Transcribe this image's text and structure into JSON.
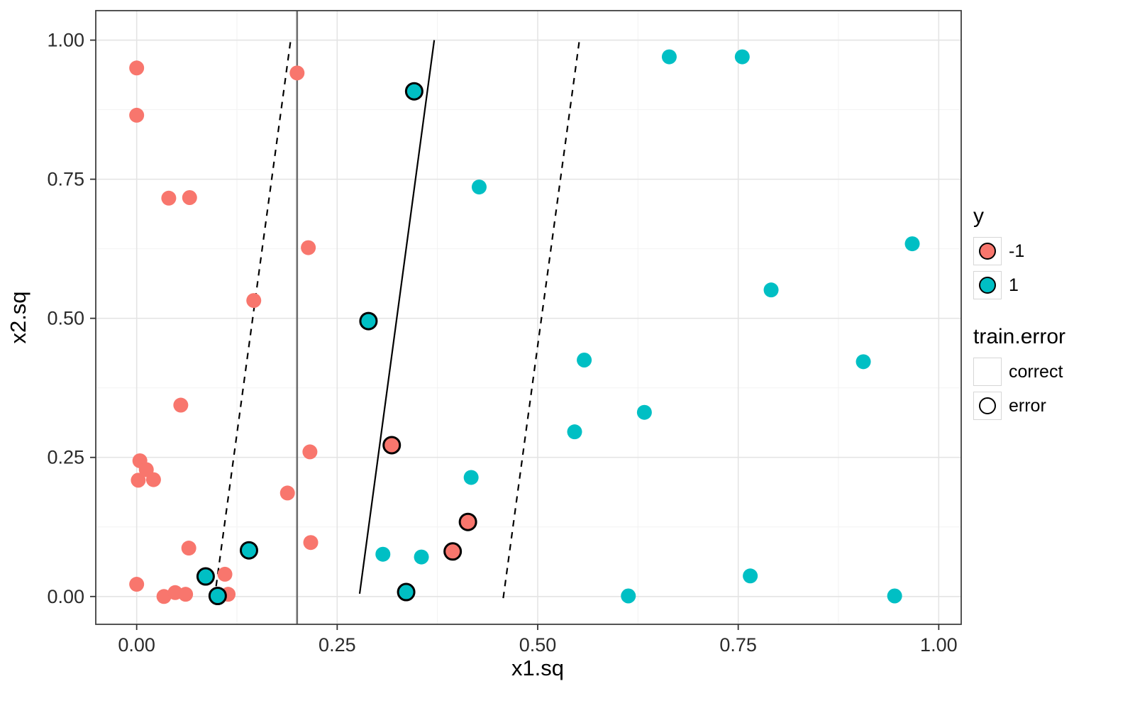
{
  "chart_data": {
    "type": "scatter",
    "title": "",
    "xlabel": "x1.sq",
    "ylabel": "x2.sq",
    "xlim": [
      -0.051,
      1.028
    ],
    "ylim": [
      -0.05,
      1.053
    ],
    "x_ticks": [
      0,
      0.25,
      0.5,
      0.75,
      1
    ],
    "y_ticks": [
      0,
      0.25,
      0.5,
      0.75,
      1
    ],
    "x_tick_labels": [
      "0.00",
      "0.25",
      "0.50",
      "0.75",
      "1.00"
    ],
    "y_tick_labels": [
      "0.00",
      "0.25",
      "0.50",
      "0.75",
      "1.00"
    ],
    "x_minor": [
      0.125,
      0.375,
      0.625,
      0.875
    ],
    "y_minor": [
      0.125,
      0.375,
      0.625,
      0.875
    ],
    "grid": true,
    "legend_position": "right",
    "point_note": "points are [x, y, train_error_flag] where 1 = error (black outline)",
    "series": [
      {
        "name": "-1",
        "color": "#F8766D",
        "points": [
          [
            0.0,
            0.95,
            0
          ],
          [
            0.0,
            0.865,
            0
          ],
          [
            0.04,
            0.716,
            0
          ],
          [
            0.066,
            0.717,
            0
          ],
          [
            0.2,
            0.941,
            0
          ],
          [
            0.214,
            0.627,
            0
          ],
          [
            0.146,
            0.532,
            0
          ],
          [
            0.055,
            0.344,
            0
          ],
          [
            0.216,
            0.26,
            0
          ],
          [
            0.004,
            0.244,
            0
          ],
          [
            0.012,
            0.228,
            0
          ],
          [
            0.002,
            0.209,
            0
          ],
          [
            0.021,
            0.21,
            0
          ],
          [
            0.188,
            0.186,
            0
          ],
          [
            0.065,
            0.087,
            0
          ],
          [
            0.217,
            0.097,
            0
          ],
          [
            0.0,
            0.022,
            0
          ],
          [
            0.034,
            0.0,
            0
          ],
          [
            0.048,
            0.007,
            0
          ],
          [
            0.061,
            0.004,
            0
          ],
          [
            0.11,
            0.04,
            0
          ],
          [
            0.114,
            0.004,
            0
          ],
          [
            0.318,
            0.272,
            1
          ],
          [
            0.413,
            0.134,
            1
          ],
          [
            0.394,
            0.081,
            1
          ]
        ]
      },
      {
        "name": "1",
        "color": "#00BFC4",
        "points": [
          [
            0.664,
            0.97,
            0
          ],
          [
            0.755,
            0.97,
            0
          ],
          [
            0.427,
            0.736,
            0
          ],
          [
            0.967,
            0.634,
            0
          ],
          [
            0.791,
            0.551,
            0
          ],
          [
            0.558,
            0.425,
            0
          ],
          [
            0.906,
            0.422,
            0
          ],
          [
            0.633,
            0.331,
            0
          ],
          [
            0.546,
            0.296,
            0
          ],
          [
            0.417,
            0.214,
            0
          ],
          [
            0.307,
            0.076,
            0
          ],
          [
            0.355,
            0.071,
            0
          ],
          [
            0.765,
            0.037,
            0
          ],
          [
            0.613,
            0.001,
            0
          ],
          [
            0.945,
            0.001,
            0
          ],
          [
            0.346,
            0.908,
            1
          ],
          [
            0.289,
            0.495,
            1
          ],
          [
            0.14,
            0.083,
            1
          ],
          [
            0.086,
            0.036,
            1
          ],
          [
            0.101,
            0.001,
            1
          ],
          [
            0.336,
            0.008,
            1
          ]
        ]
      }
    ],
    "lines": [
      {
        "type": "vline",
        "x": 0.2,
        "color": "#6e6e6e",
        "width": 2.6,
        "dash": "",
        "name": "vertical-reference-line"
      },
      {
        "type": "segment",
        "x1": 0.097,
        "y1": -0.003,
        "x2": 0.192,
        "y2": 1.0,
        "color": "#000000",
        "width": 2.2,
        "dash": "9,8",
        "name": "left-margin-dashed-line"
      },
      {
        "type": "segment",
        "x1": 0.278,
        "y1": 0.005,
        "x2": 0.371,
        "y2": 1.0,
        "color": "#000000",
        "width": 2.2,
        "dash": "",
        "name": "decision-boundary-line"
      },
      {
        "type": "segment",
        "x1": 0.457,
        "y1": -0.003,
        "x2": 0.552,
        "y2": 1.0,
        "color": "#000000",
        "width": 2.2,
        "dash": "9,8",
        "name": "right-margin-dashed-line"
      }
    ],
    "legend": {
      "y_title": "y",
      "y_items": [
        {
          "label": "-1",
          "color": "#F8766D"
        },
        {
          "label": "1",
          "color": "#00BFC4"
        }
      ],
      "train_error_title": "train.error",
      "train_error_items": [
        {
          "label": "correct",
          "ring": false
        },
        {
          "label": "error",
          "ring": true
        }
      ]
    },
    "colors": {
      "grid_major": "#e4e4e4",
      "grid_minor": "#f2f2f2",
      "panel_border": "#404040",
      "axis_text": "#2b2b2b"
    }
  }
}
